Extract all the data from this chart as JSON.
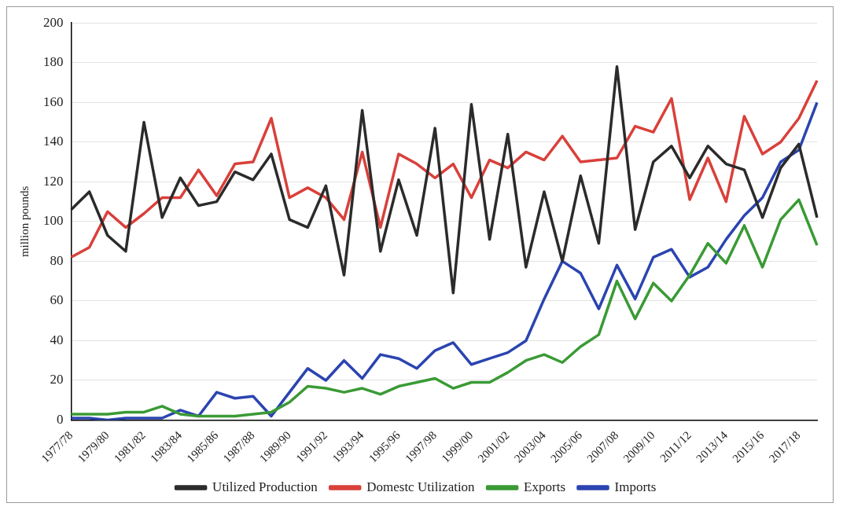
{
  "chart_data": {
    "type": "line",
    "ylabel": "million pounds",
    "categories": [
      "1977/78",
      null,
      "1979/80",
      null,
      "1981/82",
      null,
      "1983/84",
      null,
      "1985/86",
      null,
      "1987/88",
      null,
      "1989/90",
      null,
      "1991/92",
      null,
      "1993/94",
      null,
      "1995/96",
      null,
      "1997/98",
      null,
      "1999/00",
      null,
      "2001/02",
      null,
      "2003/04",
      null,
      "2005/06",
      null,
      "2007/08",
      null,
      "2009/10",
      null,
      "2011/12",
      null,
      "2013/14",
      null,
      "2015/16",
      null,
      "2017/18",
      null
    ],
    "series": [
      {
        "name": "Utilized Production",
        "color": "#2b2b2b",
        "values": [
          106,
          115,
          93,
          85,
          150,
          102,
          122,
          108,
          110,
          125,
          121,
          134,
          101,
          97,
          118,
          73,
          156,
          85,
          121,
          93,
          147,
          64,
          159,
          91,
          144,
          77,
          115,
          80,
          123,
          89,
          178,
          96,
          130,
          138,
          122,
          138,
          129,
          126,
          102,
          127,
          139,
          102
        ]
      },
      {
        "name": "Domestc Utilization",
        "color": "#d9403a",
        "values": [
          82,
          87,
          105,
          97,
          104,
          112,
          112,
          126,
          113,
          129,
          130,
          152,
          112,
          117,
          112,
          101,
          135,
          97,
          134,
          129,
          122,
          129,
          112,
          131,
          127,
          135,
          131,
          143,
          130,
          131,
          132,
          148,
          145,
          162,
          111,
          132,
          110,
          153,
          134,
          140,
          152,
          171
        ]
      },
      {
        "name": "Exports",
        "color": "#3a9a35",
        "values": [
          3,
          3,
          3,
          4,
          4,
          7,
          3,
          2,
          2,
          2,
          3,
          4,
          9,
          17,
          16,
          14,
          16,
          13,
          17,
          19,
          21,
          16,
          19,
          19,
          24,
          30,
          33,
          29,
          37,
          43,
          70,
          51,
          69,
          60,
          73,
          89,
          79,
          98,
          77,
          101,
          111,
          88
        ]
      },
      {
        "name": "Imports",
        "color": "#2b44b0",
        "values": [
          1,
          1,
          0,
          1,
          1,
          1,
          5,
          2,
          14,
          11,
          12,
          2,
          14,
          26,
          20,
          30,
          21,
          33,
          31,
          26,
          35,
          39,
          28,
          31,
          34,
          40,
          61,
          80,
          74,
          56,
          78,
          61,
          82,
          86,
          72,
          77,
          91,
          103,
          112,
          130,
          136,
          160
        ]
      }
    ],
    "ylim": [
      0,
      200
    ],
    "yticks": [
      0,
      20,
      40,
      60,
      80,
      100,
      120,
      140,
      160,
      180,
      200
    ],
    "grid": "y",
    "legend": "bottom",
    "marker": "none",
    "line_style": "solid"
  }
}
